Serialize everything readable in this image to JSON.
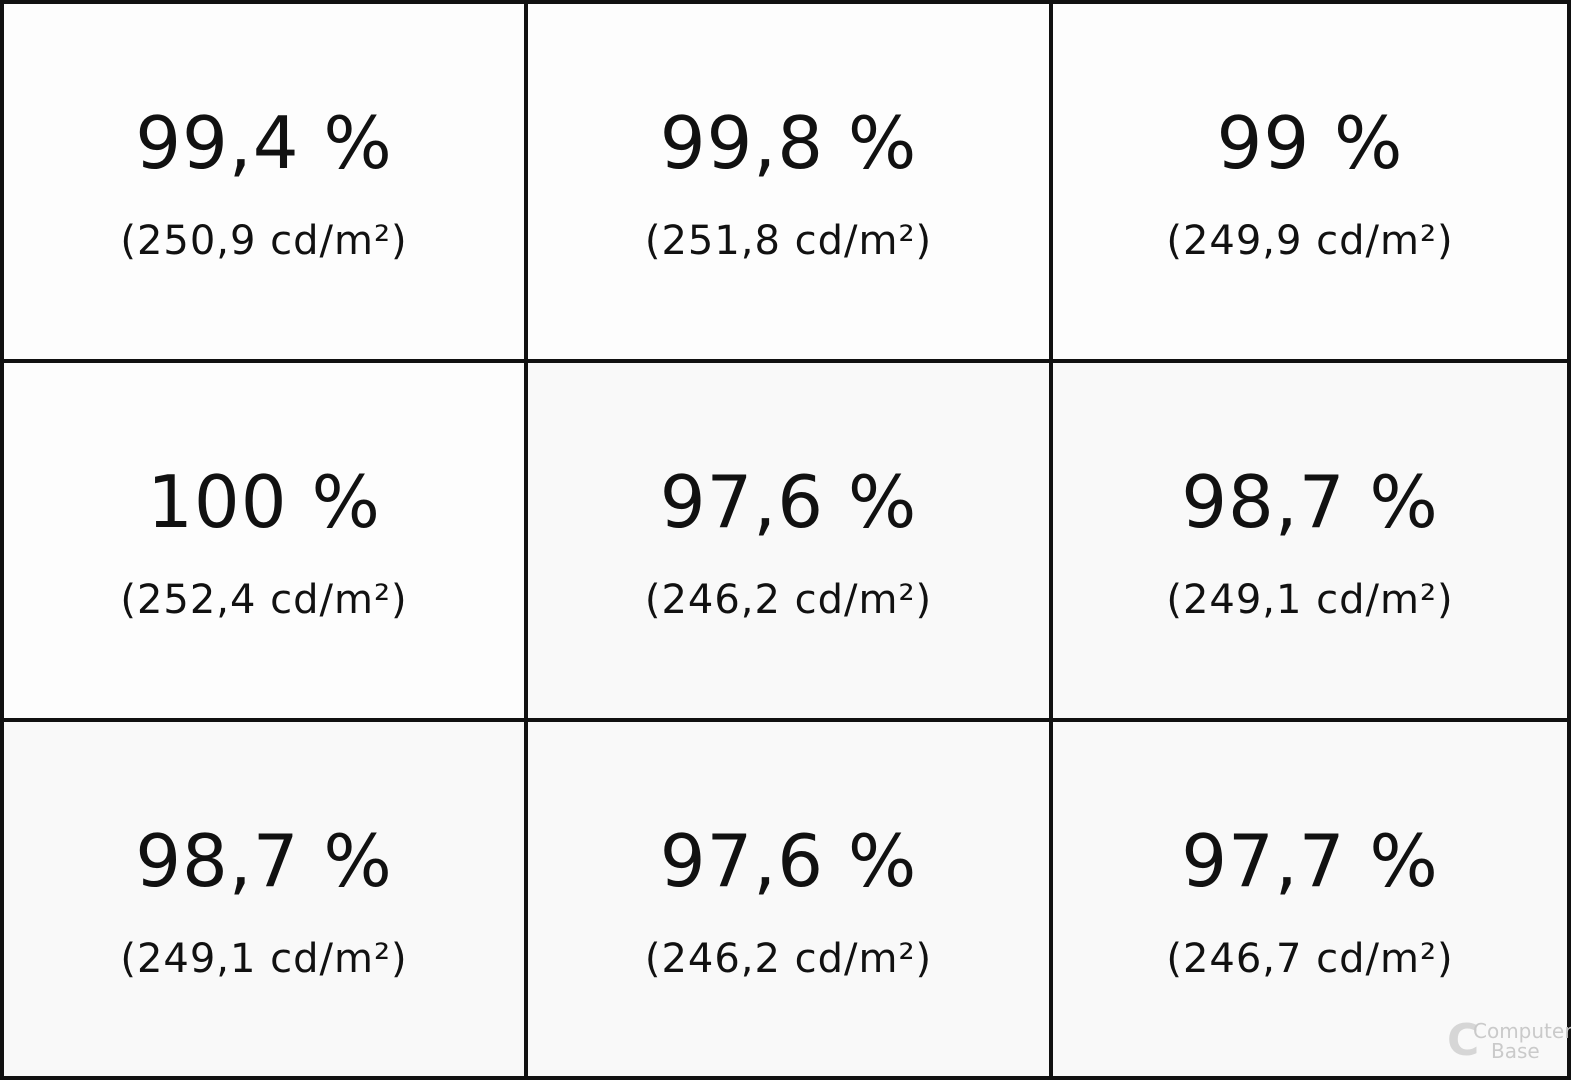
{
  "chart_data": {
    "type": "table",
    "title": "",
    "rows": 3,
    "columns": 3,
    "unit_primary": "%",
    "unit_secondary": "cd/m²",
    "cells": [
      {
        "row": 1,
        "col": 1,
        "percent": 99.4,
        "percent_label": "99,4 %",
        "luminance": 250.9,
        "luminance_label": "(250,9 cd/m²)"
      },
      {
        "row": 1,
        "col": 2,
        "percent": 99.8,
        "percent_label": "99,8 %",
        "luminance": 251.8,
        "luminance_label": "(251,8 cd/m²)"
      },
      {
        "row": 1,
        "col": 3,
        "percent": 99,
        "percent_label": "99 %",
        "luminance": 249.9,
        "luminance_label": "(249,9 cd/m²)"
      },
      {
        "row": 2,
        "col": 1,
        "percent": 100,
        "percent_label": "100 %",
        "luminance": 252.4,
        "luminance_label": "(252,4 cd/m²)"
      },
      {
        "row": 2,
        "col": 2,
        "percent": 97.6,
        "percent_label": "97,6 %",
        "luminance": 246.2,
        "luminance_label": "(246,2 cd/m²)"
      },
      {
        "row": 2,
        "col": 3,
        "percent": 98.7,
        "percent_label": "98,7 %",
        "luminance": 249.1,
        "luminance_label": "(249,1 cd/m²)"
      },
      {
        "row": 3,
        "col": 1,
        "percent": 98.7,
        "percent_label": "98,7 %",
        "luminance": 249.1,
        "luminance_label": "(249,1 cd/m²)"
      },
      {
        "row": 3,
        "col": 2,
        "percent": 97.6,
        "percent_label": "97,6 %",
        "luminance": 246.2,
        "luminance_label": "(246,2 cd/m²)"
      },
      {
        "row": 3,
        "col": 3,
        "percent": 97.7,
        "percent_label": "97,7 %",
        "luminance": 246.7,
        "luminance_label": "(246,7 cd/m²)"
      }
    ],
    "colors": {
      "cell_background": "#fdfdfd",
      "cell_background_dim": "#f9f9f9",
      "border": "#111111",
      "text": "#111111"
    }
  },
  "watermark": {
    "logo_letter": "C",
    "line1": "Computer",
    "line2": "Base"
  }
}
